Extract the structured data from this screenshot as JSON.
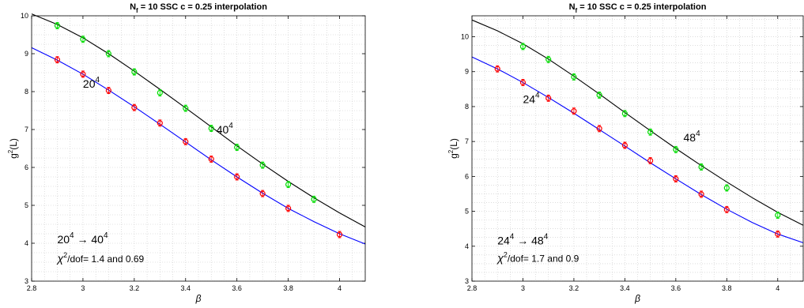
{
  "chart_data": [
    {
      "type": "scatter",
      "title": "N_f = 10   SSC  c = 0.25  interpolation",
      "title_parts": {
        "n": "N",
        "n_sub": "f",
        "rest": " = 10   SSC  c = 0.25  interpolation"
      },
      "xlabel": "β",
      "ylabel": "g²(L)",
      "ylabel_parts": {
        "g": "g",
        "sup": "2",
        "rest": "(L)"
      },
      "xlim": [
        2.8,
        4.1
      ],
      "ylim": [
        3,
        10
      ],
      "xticks": [
        "2.8",
        "3",
        "3.2",
        "3.4",
        "3.6",
        "3.8",
        "4"
      ],
      "yticks": [
        "3",
        "4",
        "5",
        "6",
        "7",
        "8",
        "9",
        "10"
      ],
      "grid": true,
      "series": [
        {
          "name": "20⁴",
          "color": "#0000ff",
          "marker_color": "#ff0000",
          "points_x": [
            2.9,
            3.0,
            3.1,
            3.2,
            3.3,
            3.4,
            3.5,
            3.6,
            3.7,
            3.8,
            4.0
          ],
          "points_y": [
            8.84,
            8.46,
            8.03,
            7.58,
            7.17,
            6.68,
            6.22,
            5.75,
            5.31,
            4.92,
            4.23
          ],
          "curve_x": [
            2.8,
            2.9,
            3.0,
            3.1,
            3.2,
            3.3,
            3.4,
            3.5,
            3.6,
            3.7,
            3.8,
            3.9,
            4.0,
            4.1
          ],
          "curve_y": [
            9.16,
            8.83,
            8.46,
            8.04,
            7.6,
            7.14,
            6.67,
            6.2,
            5.75,
            5.32,
            4.92,
            4.57,
            4.25,
            3.98
          ]
        },
        {
          "name": "40⁴",
          "color": "#000000",
          "marker_color": "#00dd00",
          "points_x": [
            2.9,
            3.0,
            3.1,
            3.2,
            3.3,
            3.4,
            3.5,
            3.6,
            3.7,
            3.8,
            3.9
          ],
          "points_y": [
            9.74,
            9.38,
            9.0,
            8.52,
            7.97,
            7.56,
            7.03,
            6.53,
            6.06,
            5.55,
            5.16
          ],
          "curve_x": [
            2.8,
            2.9,
            3.0,
            3.1,
            3.2,
            3.3,
            3.4,
            3.5,
            3.6,
            3.7,
            3.8,
            3.9,
            4.0,
            4.1
          ],
          "curve_y": [
            10.05,
            9.77,
            9.42,
            9.0,
            8.54,
            8.06,
            7.57,
            7.07,
            6.57,
            6.09,
            5.63,
            5.2,
            4.8,
            4.43
          ]
        }
      ],
      "annotations": {
        "label_small": {
          "base": "20",
          "sup": "4",
          "x": 3.0,
          "y": 8.1
        },
        "label_large": {
          "base": "40",
          "sup": "4",
          "x": 3.52,
          "y": 6.9
        },
        "transition": {
          "from_base": "20",
          "from_sup": "4",
          "arrow": "→",
          "to_base": "40",
          "to_sup": "4",
          "x": 2.9,
          "y": 4.0
        },
        "chi": {
          "chi": "χ",
          "sup": "2",
          "rest": "/dof= 1.4 and 0.69",
          "x": 2.9,
          "y": 3.5
        }
      }
    },
    {
      "type": "scatter",
      "title": "N_f = 10   SSC  c = 0.25  interpolation",
      "title_parts": {
        "n": "N",
        "n_sub": "f",
        "rest": " = 10   SSC  c = 0.25  interpolation"
      },
      "xlabel": "β",
      "ylabel": "g²(L)",
      "ylabel_parts": {
        "g": "g",
        "sup": "2",
        "rest": "(L)"
      },
      "xlim": [
        2.8,
        4.1
      ],
      "ylim": [
        3,
        10.6
      ],
      "xticks": [
        "2.8",
        "3",
        "3.2",
        "3.4",
        "3.6",
        "3.8",
        "4"
      ],
      "yticks": [
        "3",
        "4",
        "5",
        "6",
        "7",
        "8",
        "9",
        "10"
      ],
      "grid": true,
      "series": [
        {
          "name": "24⁴",
          "color": "#0000ff",
          "marker_color": "#ff0000",
          "points_x": [
            2.9,
            3.0,
            3.1,
            3.2,
            3.3,
            3.4,
            3.5,
            3.6,
            3.7,
            3.8,
            4.0
          ],
          "points_y": [
            9.08,
            8.69,
            8.24,
            7.87,
            7.37,
            6.89,
            6.45,
            5.93,
            5.49,
            5.05,
            4.35
          ],
          "curve_x": [
            2.8,
            2.9,
            3.0,
            3.1,
            3.2,
            3.3,
            3.4,
            3.5,
            3.6,
            3.7,
            3.8,
            3.9,
            4.0,
            4.1
          ],
          "curve_y": [
            9.42,
            9.08,
            8.69,
            8.26,
            7.81,
            7.34,
            6.87,
            6.39,
            5.93,
            5.48,
            5.06,
            4.68,
            4.35,
            4.1
          ]
        },
        {
          "name": "48⁴",
          "color": "#000000",
          "marker_color": "#00dd00",
          "points_x": [
            3.0,
            3.1,
            3.2,
            3.3,
            3.4,
            3.5,
            3.6,
            3.7,
            3.8,
            4.0
          ],
          "points_y": [
            9.72,
            9.35,
            8.85,
            8.33,
            7.8,
            7.27,
            6.77,
            6.27,
            5.67,
            4.89
          ],
          "curve_x": [
            2.8,
            2.9,
            3.0,
            3.1,
            3.2,
            3.3,
            3.4,
            3.5,
            3.6,
            3.7,
            3.8,
            3.9,
            4.0,
            4.1
          ],
          "curve_y": [
            10.48,
            10.17,
            9.8,
            9.36,
            8.87,
            8.36,
            7.83,
            7.31,
            6.8,
            6.31,
            5.84,
            5.39,
            4.97,
            4.6
          ]
        }
      ],
      "annotations": {
        "label_small": {
          "base": "24",
          "sup": "4",
          "x": 3.0,
          "y": 8.1
        },
        "label_large": {
          "base": "48",
          "sup": "4",
          "x": 3.63,
          "y": 7.0
        },
        "transition": {
          "from_base": "24",
          "from_sup": "4",
          "arrow": "→",
          "to_base": "48",
          "to_sup": "4",
          "x": 2.9,
          "y": 4.05
        },
        "chi": {
          "chi": "χ",
          "sup": "2",
          "rest": "/dof= 1.7 and 0.9",
          "x": 2.9,
          "y": 3.55
        }
      }
    }
  ]
}
